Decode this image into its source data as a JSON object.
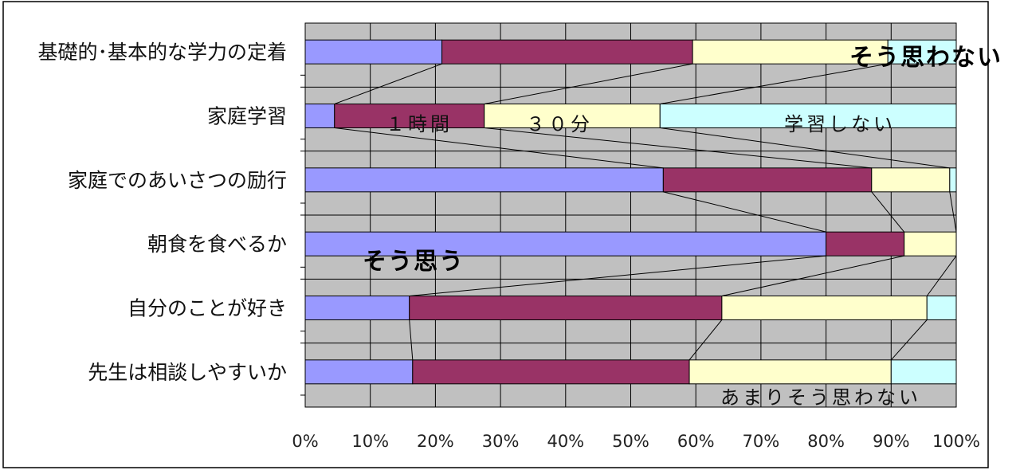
{
  "chart_data": {
    "type": "bar",
    "stacked": "percent",
    "orientation": "horizontal",
    "categories": [
      "基礎的･基本的な学力の定着",
      "家庭学習",
      "家庭でのあいさつの励行",
      "朝食を食べるか",
      "自分のことが好き",
      "先生は相談しやすいか"
    ],
    "series": [
      {
        "values": [
          21,
          4.5,
          55,
          80,
          16,
          16.5
        ]
      },
      {
        "values": [
          38.5,
          23,
          32,
          12,
          48,
          42.5
        ]
      },
      {
        "values": [
          30,
          27,
          12,
          8,
          31.5,
          31
        ]
      },
      {
        "values": [
          10.5,
          45.5,
          1,
          0,
          4.5,
          10
        ]
      }
    ],
    "colors": [
      "#9999ff",
      "#993366",
      "#ffffcc",
      "#ccffff"
    ],
    "x_ticks": [
      "0%",
      "10%",
      "20%",
      "30%",
      "40%",
      "50%",
      "60%",
      "70%",
      "80%",
      "90%",
      "100%"
    ],
    "xlim": [
      0,
      100
    ],
    "grid": true,
    "series_lines": true,
    "annotations": [
      {
        "text": "そう思わない",
        "near": "top-right"
      },
      {
        "text": "１時間",
        "near": "家庭学習 series 2"
      },
      {
        "text": "３０分",
        "near": "家庭学習 series 3"
      },
      {
        "text": "学習しない",
        "near": "家庭学習 series 4"
      },
      {
        "text": "そう思う",
        "near": "朝食を食べるか series 1"
      },
      {
        "text": "あまりそう思わない",
        "near": "bottom"
      }
    ]
  }
}
